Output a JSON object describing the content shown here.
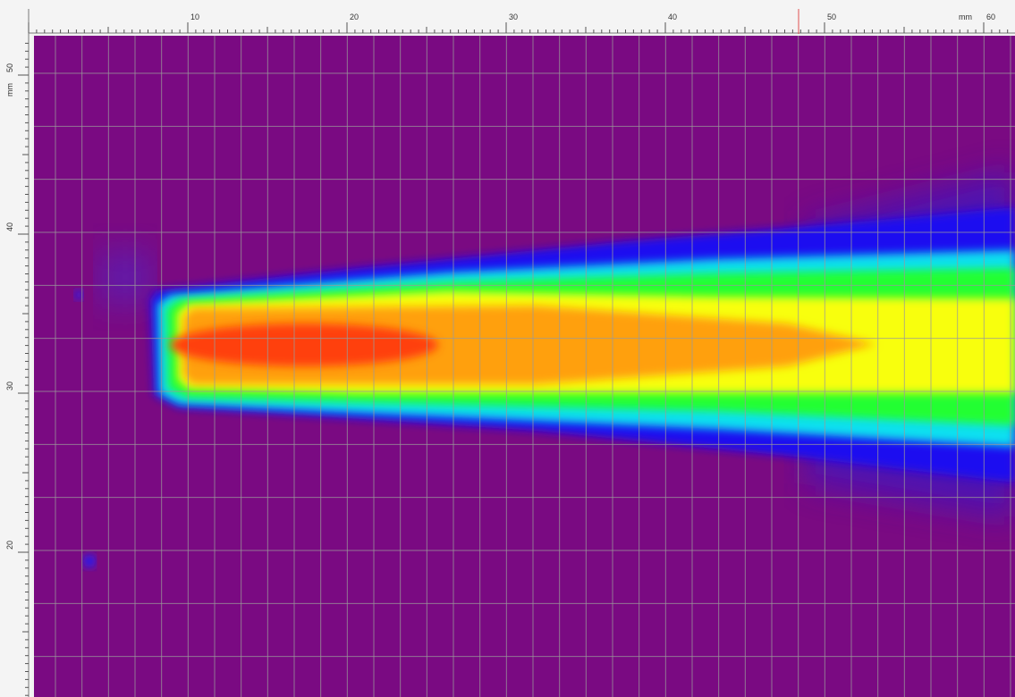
{
  "rulers": {
    "unit": "mm",
    "top": {
      "labels": [
        "10",
        "20",
        "30",
        "40",
        "50",
        "60"
      ]
    },
    "left": {
      "labels": [
        "50",
        "40",
        "30",
        "20"
      ]
    }
  }
}
